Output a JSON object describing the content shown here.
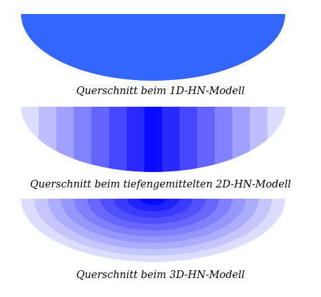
{
  "captions": {
    "model_1d": "Querschnitt beim 1D-HN-Modell",
    "model_2d": "Querschnitt beim tiefengemittelten 2D-HN-Modell",
    "model_3d": "Querschnitt beim 3D-HN-Modell"
  },
  "colors": {
    "solid": "#3366ff",
    "lightest": "#dcdcff",
    "darkest": "#0a0aff",
    "background": "#ffffff"
  },
  "slices_2d": 15,
  "rings_3d": 10
}
